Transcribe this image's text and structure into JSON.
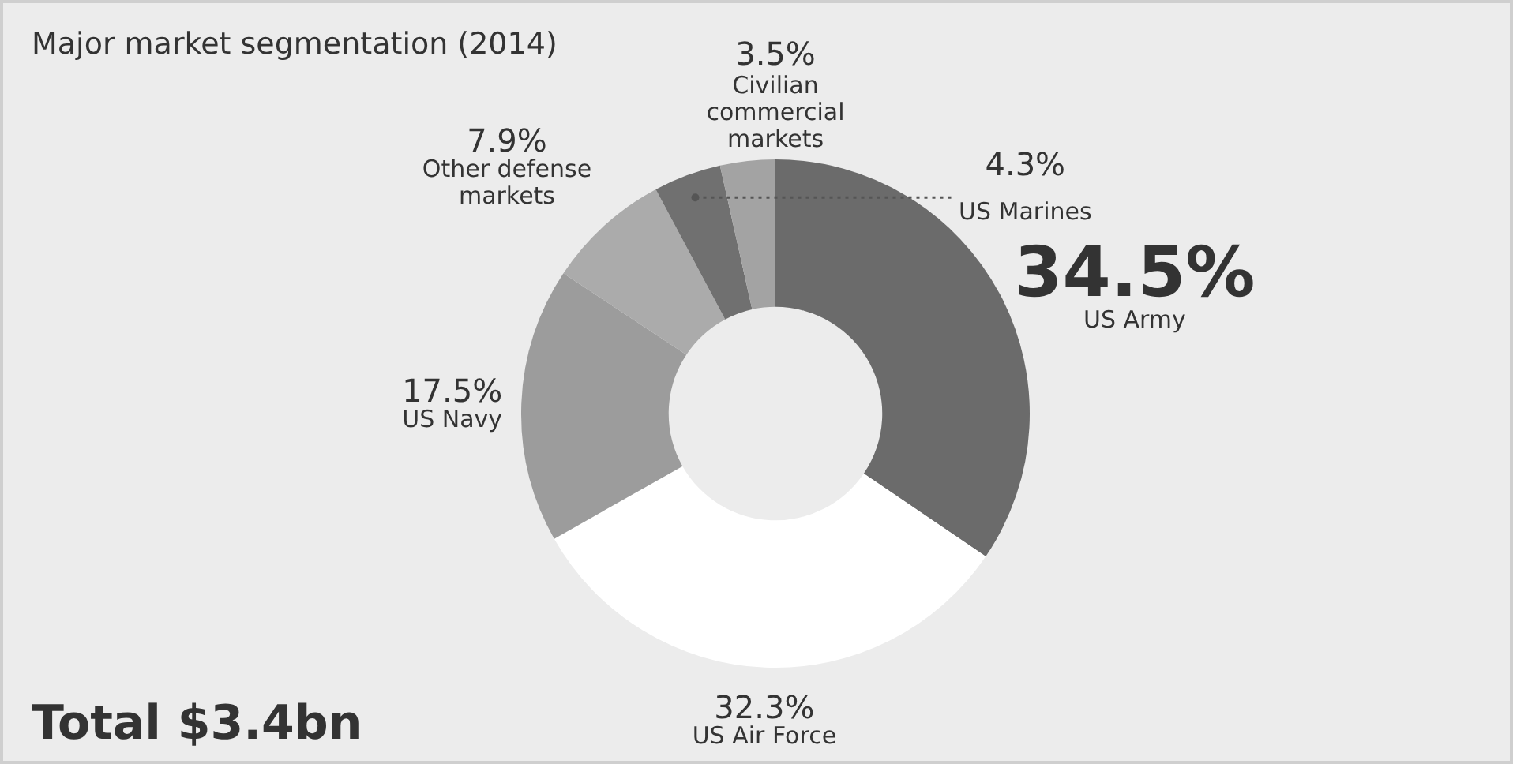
{
  "chart_data": {
    "type": "donut",
    "title": "Major market segmentation (2014)",
    "categories": [
      "US Army",
      "US Air Force",
      "US Navy",
      "Other defense markets",
      "US Marines",
      "Civilian commercial markets"
    ],
    "values": [
      34.5,
      32.3,
      17.5,
      7.9,
      4.3,
      3.5
    ],
    "value_labels": [
      "34.5%",
      "32.3%",
      "17.5%",
      "7.9%",
      "4.3%",
      "3.5%"
    ],
    "colors": [
      "#6b6b6b",
      "#ffffff",
      "#9c9c9c",
      "#ababab",
      "#707070",
      "#a3a3a3"
    ],
    "annotations": [
      "Total $3.4bn"
    ],
    "legend": false
  }
}
